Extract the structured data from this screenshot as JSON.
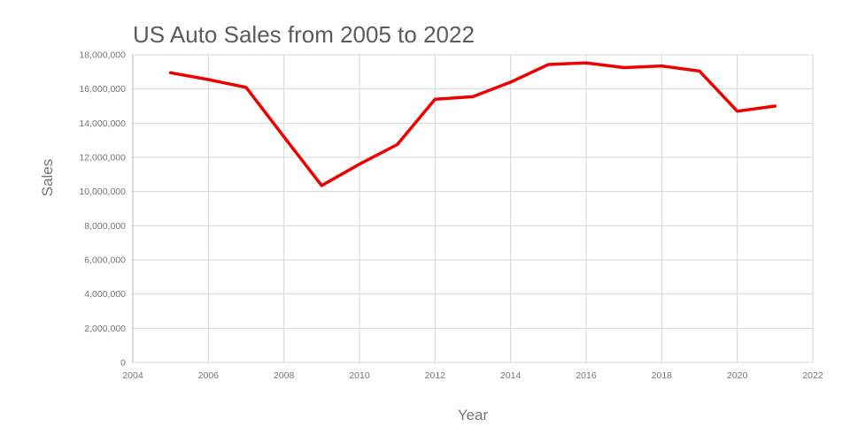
{
  "chart_data": {
    "type": "line",
    "title": "US Auto Sales from 2005 to 2022",
    "xlabel": "Year",
    "ylabel": "Sales",
    "x": [
      2005,
      2006,
      2007,
      2008,
      2009,
      2010,
      2011,
      2012,
      2013,
      2014,
      2015,
      2016,
      2017,
      2018,
      2019,
      2020,
      2021
    ],
    "values": [
      16950000,
      16550000,
      16090000,
      13200000,
      10350000,
      11600000,
      12750000,
      15400000,
      15550000,
      16400000,
      17430000,
      17530000,
      17250000,
      17350000,
      17050000,
      14700000,
      15000000
    ],
    "series_name": "Sales",
    "xlim": [
      2004,
      2022
    ],
    "ylim": [
      0,
      18000000
    ],
    "x_ticks": [
      2004,
      2006,
      2008,
      2010,
      2012,
      2014,
      2016,
      2018,
      2020,
      2022
    ],
    "y_ticks": [
      0,
      2000000,
      4000000,
      6000000,
      8000000,
      10000000,
      12000000,
      14000000,
      16000000,
      18000000
    ],
    "grid": true,
    "legend": "none",
    "line_color": "#ee0000",
    "grid_color": "#d9d9d9",
    "axis_color": "#b7b7b7",
    "tick_label_color": "#757575",
    "title_color": "#5b5b5b"
  }
}
